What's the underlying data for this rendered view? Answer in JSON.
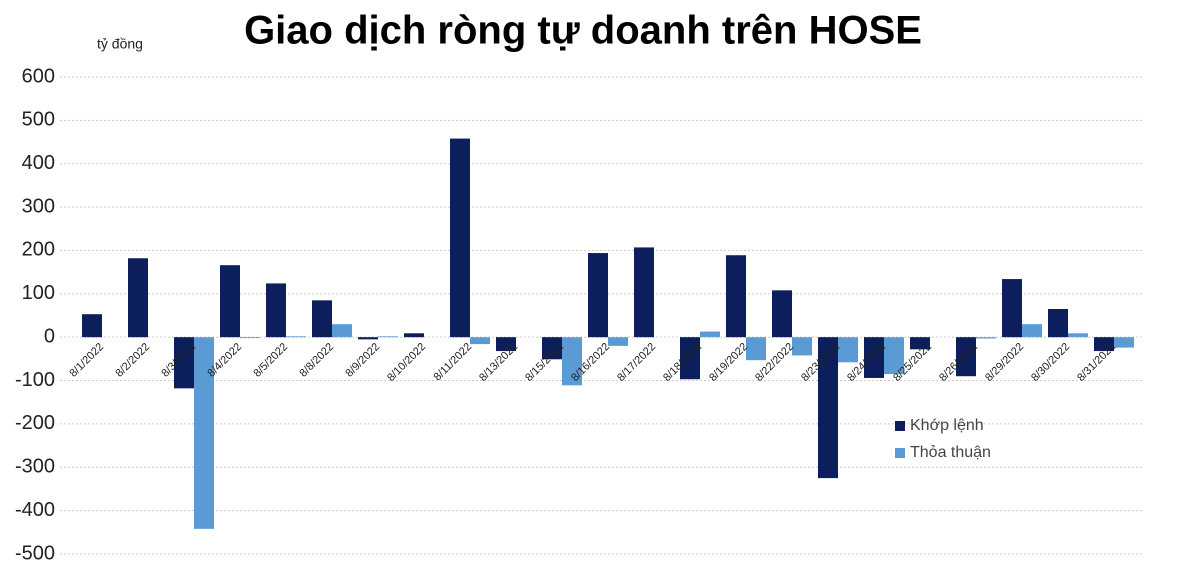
{
  "chart_data": {
    "type": "bar",
    "title": "Giao dịch ròng tự doanh trên HOSE",
    "y_label": "tỷ đồng",
    "categories": [
      "8/1/2022",
      "8/2/2022",
      "8/3/2022",
      "8/4/2022",
      "8/5/2022",
      "8/8/2022",
      "8/9/2022",
      "8/10/2022",
      "8/11/2022",
      "8/13/2022",
      "8/15/2022",
      "8/16/2022",
      "8/17/2022",
      "8/18/2022",
      "8/19/2022",
      "8/22/2022",
      "8/23/2022",
      "8/24/2022",
      "8/25/2022",
      "8/26/2022",
      "8/29/2022",
      "8/30/2022",
      "8/31/2022"
    ],
    "series": [
      {
        "name": "Khớp lệnh",
        "color": "#0c1f5c",
        "values": [
          53,
          182,
          -118,
          166,
          124,
          85,
          -5,
          9,
          458,
          -32,
          -51,
          194,
          207,
          -97,
          189,
          108,
          -325,
          -94,
          -28,
          -90,
          134,
          65,
          -32
        ]
      },
      {
        "name": "Thỏa thuận",
        "color": "#5b9bd5",
        "values": [
          0,
          0,
          -442,
          -2,
          2,
          30,
          2,
          0,
          -16,
          0,
          -111,
          -20,
          0,
          13,
          -53,
          -42,
          -58,
          -85,
          0,
          -3,
          30,
          9,
          -24
        ]
      }
    ],
    "ylim": [
      -500,
      600
    ],
    "yticks": [
      -500,
      -400,
      -300,
      -200,
      -100,
      0,
      100,
      200,
      300,
      400,
      500,
      600
    ],
    "grid": true
  }
}
